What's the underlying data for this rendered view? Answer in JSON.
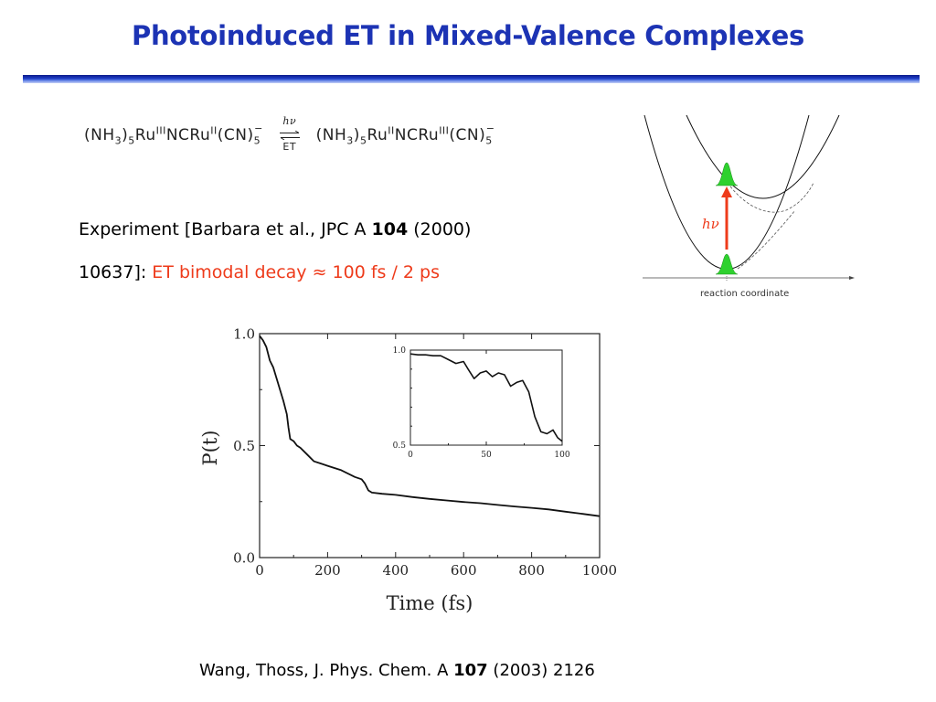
{
  "title": "Photoinduced ET in Mixed-Valence Complexes",
  "equation": {
    "left": {
      "p1": "(NH",
      "s1": "3",
      "p2": ")",
      "s2": "5",
      "p3": "Ru",
      "sup1": "III",
      "p4": "NCRu",
      "sup2": "II",
      "p5": "(CN)",
      "sub3": "5",
      "sup3": "−"
    },
    "arrow_top": "hν",
    "arrow_bottom": "ET",
    "right": {
      "p1": "(NH",
      "s1": "3",
      "p2": ")",
      "s2": "5",
      "p3": "Ru",
      "sup1": "II",
      "p4": "NCRu",
      "sup2": "III",
      "p5": "(CN)",
      "sub3": "5",
      "sup3": "−"
    }
  },
  "experiment": {
    "prefix": "Experiment [Barbara et al., JPC A ",
    "volume": "104",
    "year": " (2000)",
    "pages": "10637]: ",
    "result": "ET bimodal decay ≈ 100 fs / 2 ps"
  },
  "diagram": {
    "hv_label": "hν",
    "x_axis_label": "reaction coordinate"
  },
  "citation": {
    "prefix": "Wang, Thoss, J.  Phys. Chem. A ",
    "volume": "107",
    "suffix": " (2003) 2126"
  },
  "colors": {
    "title": "#1c33b4",
    "highlight": "#ee3b1b",
    "wavepacket": "#2ed12e"
  },
  "chart_data": [
    {
      "type": "line",
      "title": "",
      "xlabel": "Time (fs)",
      "ylabel": "P(t)",
      "xlim": [
        0,
        1000
      ],
      "ylim": [
        0,
        1.0
      ],
      "x_ticks": [
        "0",
        "200",
        "400",
        "600",
        "800",
        "1000"
      ],
      "y_ticks": [
        "0.0",
        "0.5",
        "1.0"
      ],
      "series": [
        {
          "x": [
            0,
            10,
            20,
            30,
            40,
            50,
            60,
            70,
            80,
            85,
            90,
            100,
            110,
            120,
            140,
            160,
            180,
            200,
            240,
            280,
            300,
            310,
            320,
            330,
            360,
            400,
            450,
            500,
            550,
            600,
            650,
            700,
            750,
            800,
            850,
            900,
            950,
            1000
          ],
          "y": [
            0.99,
            0.97,
            0.94,
            0.88,
            0.85,
            0.8,
            0.75,
            0.7,
            0.64,
            0.58,
            0.53,
            0.52,
            0.5,
            0.49,
            0.46,
            0.43,
            0.42,
            0.41,
            0.39,
            0.36,
            0.35,
            0.33,
            0.3,
            0.29,
            0.285,
            0.28,
            0.27,
            0.262,
            0.255,
            0.248,
            0.243,
            0.235,
            0.228,
            0.222,
            0.215,
            0.205,
            0.195,
            0.185
          ]
        }
      ]
    },
    {
      "type": "line",
      "title": "",
      "xlabel": "",
      "ylabel": "",
      "xlim": [
        0,
        100
      ],
      "ylim": [
        0.5,
        1.0
      ],
      "x_ticks": [
        "0",
        "50",
        "100"
      ],
      "y_ticks": [
        "0.5",
        "1.0"
      ],
      "series": [
        {
          "x": [
            0,
            5,
            10,
            15,
            20,
            25,
            30,
            35,
            38,
            42,
            46,
            50,
            54,
            58,
            62,
            66,
            70,
            74,
            78,
            82,
            86,
            90,
            94,
            97,
            100
          ],
          "y": [
            0.98,
            0.975,
            0.975,
            0.97,
            0.97,
            0.95,
            0.93,
            0.94,
            0.9,
            0.85,
            0.88,
            0.89,
            0.86,
            0.88,
            0.87,
            0.81,
            0.83,
            0.84,
            0.78,
            0.65,
            0.57,
            0.56,
            0.58,
            0.54,
            0.52
          ]
        }
      ]
    }
  ]
}
